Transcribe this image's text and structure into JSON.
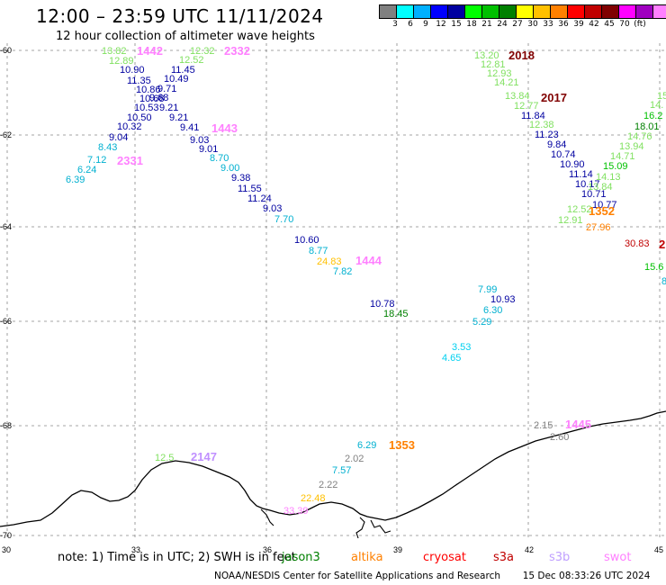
{
  "header": {
    "title": "12:00 – 23:59 UTC 11/11/2024",
    "subtitle": "12 hour collection of altimeter wave heights"
  },
  "colorbar": {
    "colors": [
      "#808080",
      "#00ffff",
      "#00b0ff",
      "#0000ff",
      "#0000a0",
      "#00ff00",
      "#00c000",
      "#008000",
      "#ffff00",
      "#ffc000",
      "#ff8000",
      "#ff0000",
      "#c00000",
      "#800000",
      "#ff00ff",
      "#a000c0",
      "#ff80ff",
      "#000000"
    ],
    "labels": [
      "3",
      "6",
      "9",
      "12",
      "15",
      "18",
      "21",
      "24",
      "27",
      "30",
      "33",
      "36",
      "39",
      "42",
      "45",
      "70",
      "(ft)"
    ],
    "unit": "(ft)"
  },
  "axes": {
    "x_ticks": [
      "30",
      "33",
      "36",
      "39",
      "42",
      "45"
    ],
    "y_ticks": [
      "-60",
      "-62",
      "-64",
      "-66",
      "-68",
      "-70"
    ]
  },
  "passes": [
    {
      "id": "1442",
      "color": "#ff80ff"
    },
    {
      "id": "2332",
      "color": "#ff80ff"
    },
    {
      "id": "1443",
      "color": "#ff80ff"
    },
    {
      "id": "2331",
      "color": "#ff80ff"
    },
    {
      "id": "1444",
      "color": "#ff80ff"
    },
    {
      "id": "2018",
      "color": "#800000"
    },
    {
      "id": "2017",
      "color": "#800000"
    },
    {
      "id": "1352",
      "color": "#ff8000"
    },
    {
      "id": "1353",
      "color": "#ff8000"
    },
    {
      "id": "1445",
      "color": "#ff80ff"
    },
    {
      "id": "2147",
      "color": "#c090ff"
    },
    {
      "id": "2",
      "color": "#c00000"
    }
  ],
  "wave_values": [
    {
      "v": "13.82",
      "c": "#80e060"
    },
    {
      "v": "12.89",
      "c": "#80e060"
    },
    {
      "v": "10.90",
      "c": "#0000a0"
    },
    {
      "v": "11.35",
      "c": "#0000a0"
    },
    {
      "v": "10.86",
      "c": "#0000a0"
    },
    {
      "v": "10.68",
      "c": "#0000a0"
    },
    {
      "v": "10.53",
      "c": "#0000a0"
    },
    {
      "v": "10.50",
      "c": "#0000a0"
    },
    {
      "v": "10.32",
      "c": "#0000a0"
    },
    {
      "v": "9.04",
      "c": "#0000a0"
    },
    {
      "v": "8.43",
      "c": "#00b0d0"
    },
    {
      "v": "7.12",
      "c": "#00b0d0"
    },
    {
      "v": "6.24",
      "c": "#00b0d0"
    },
    {
      "v": "6.39",
      "c": "#00b0d0"
    },
    {
      "v": "12.32",
      "c": "#80e060"
    },
    {
      "v": "12.52",
      "c": "#80e060"
    },
    {
      "v": "11.45",
      "c": "#0000a0"
    },
    {
      "v": "10.49",
      "c": "#0000a0"
    },
    {
      "v": "9.71",
      "c": "#0000a0"
    },
    {
      "v": "9.68",
      "c": "#0000a0"
    },
    {
      "v": "9.21",
      "c": "#0000a0"
    },
    {
      "v": "9.21",
      "c": "#0000a0"
    },
    {
      "v": "9.41",
      "c": "#0000a0"
    },
    {
      "v": "9.03",
      "c": "#0000a0"
    },
    {
      "v": "9.01",
      "c": "#0000a0"
    },
    {
      "v": "8.70",
      "c": "#00b0d0"
    },
    {
      "v": "9.00",
      "c": "#00b0d0"
    },
    {
      "v": "9.38",
      "c": "#0000a0"
    },
    {
      "v": "11.55",
      "c": "#0000a0"
    },
    {
      "v": "11.24",
      "c": "#0000a0"
    },
    {
      "v": "9.03",
      "c": "#0000a0"
    },
    {
      "v": "7.70",
      "c": "#00b0d0"
    },
    {
      "v": "10.60",
      "c": "#0000a0"
    },
    {
      "v": "8.77",
      "c": "#00b0d0"
    },
    {
      "v": "24.83",
      "c": "#ffc000"
    },
    {
      "v": "7.82",
      "c": "#00b0d0"
    },
    {
      "v": "10.78",
      "c": "#0000a0"
    },
    {
      "v": "18.45",
      "c": "#008000"
    },
    {
      "v": "13.20",
      "c": "#80e060"
    },
    {
      "v": "12.81",
      "c": "#80e060"
    },
    {
      "v": "12.93",
      "c": "#80e060"
    },
    {
      "v": "14.21",
      "c": "#80e060"
    },
    {
      "v": "13.84",
      "c": "#80e060"
    },
    {
      "v": "12.77",
      "c": "#80e060"
    },
    {
      "v": "11.84",
      "c": "#0000a0"
    },
    {
      "v": "12.38",
      "c": "#80e060"
    },
    {
      "v": "11.23",
      "c": "#0000a0"
    },
    {
      "v": "9.84",
      "c": "#0000a0"
    },
    {
      "v": "10.74",
      "c": "#0000a0"
    },
    {
      "v": "10.90",
      "c": "#0000a0"
    },
    {
      "v": "11.14",
      "c": "#0000a0"
    },
    {
      "v": "10.17",
      "c": "#0000a0"
    },
    {
      "v": "10.71",
      "c": "#0000a0"
    },
    {
      "v": "10.77",
      "c": "#0000a0"
    },
    {
      "v": "12.52",
      "c": "#80e060"
    },
    {
      "v": "12.91",
      "c": "#80e060"
    },
    {
      "v": "15",
      "c": "#80e060"
    },
    {
      "v": "14.",
      "c": "#80e060"
    },
    {
      "v": "16.2",
      "c": "#00c000"
    },
    {
      "v": "18.01",
      "c": "#008000"
    },
    {
      "v": "14.76",
      "c": "#80e060"
    },
    {
      "v": "13.94",
      "c": "#80e060"
    },
    {
      "v": "14.71",
      "c": "#80e060"
    },
    {
      "v": "15.09",
      "c": "#00c000"
    },
    {
      "v": "14.13",
      "c": "#80e060"
    },
    {
      "v": "13.84",
      "c": "#80e060"
    },
    {
      "v": "27.96",
      "c": "#ff8000"
    },
    {
      "v": "30.83",
      "c": "#c00000"
    },
    {
      "v": "15.6",
      "c": "#00c000"
    },
    {
      "v": "8",
      "c": "#00b0d0"
    },
    {
      "v": "7.99",
      "c": "#00b0d0"
    },
    {
      "v": "10.93",
      "c": "#0000a0"
    },
    {
      "v": "6.30",
      "c": "#00b0d0"
    },
    {
      "v": "5.29",
      "c": "#00b0d0"
    },
    {
      "v": "3.53",
      "c": "#00d0f0"
    },
    {
      "v": "4.65",
      "c": "#00d0f0"
    },
    {
      "v": "2.15",
      "c": "#808080"
    },
    {
      "v": "2.60",
      "c": "#808080"
    },
    {
      "v": "6.29",
      "c": "#00b0d0"
    },
    {
      "v": "2.02",
      "c": "#808080"
    },
    {
      "v": "7.57",
      "c": "#00b0d0"
    },
    {
      "v": "2.22",
      "c": "#808080"
    },
    {
      "v": "22.48",
      "c": "#ffc000"
    },
    {
      "v": "33.39",
      "c": "#ff80ff"
    },
    {
      "v": "12.5",
      "c": "#80e060"
    }
  ],
  "footer": {
    "note": "note: 1) Time is in UTC; 2) SWH is in feet",
    "satellites": [
      {
        "name": "jason3",
        "color": "#008000"
      },
      {
        "name": "altika",
        "color": "#ff8000"
      },
      {
        "name": "cryosat",
        "color": "#ff0000"
      },
      {
        "name": "s3a",
        "color": "#c00000"
      },
      {
        "name": "s3b",
        "color": "#c0a0ff"
      },
      {
        "name": "swot",
        "color": "#ff80ff"
      }
    ],
    "credits": "NOAA/NESDIS Center for Satellite Applications and Research",
    "timestamp": "15 Dec 08:33:26 UTC 2024"
  }
}
